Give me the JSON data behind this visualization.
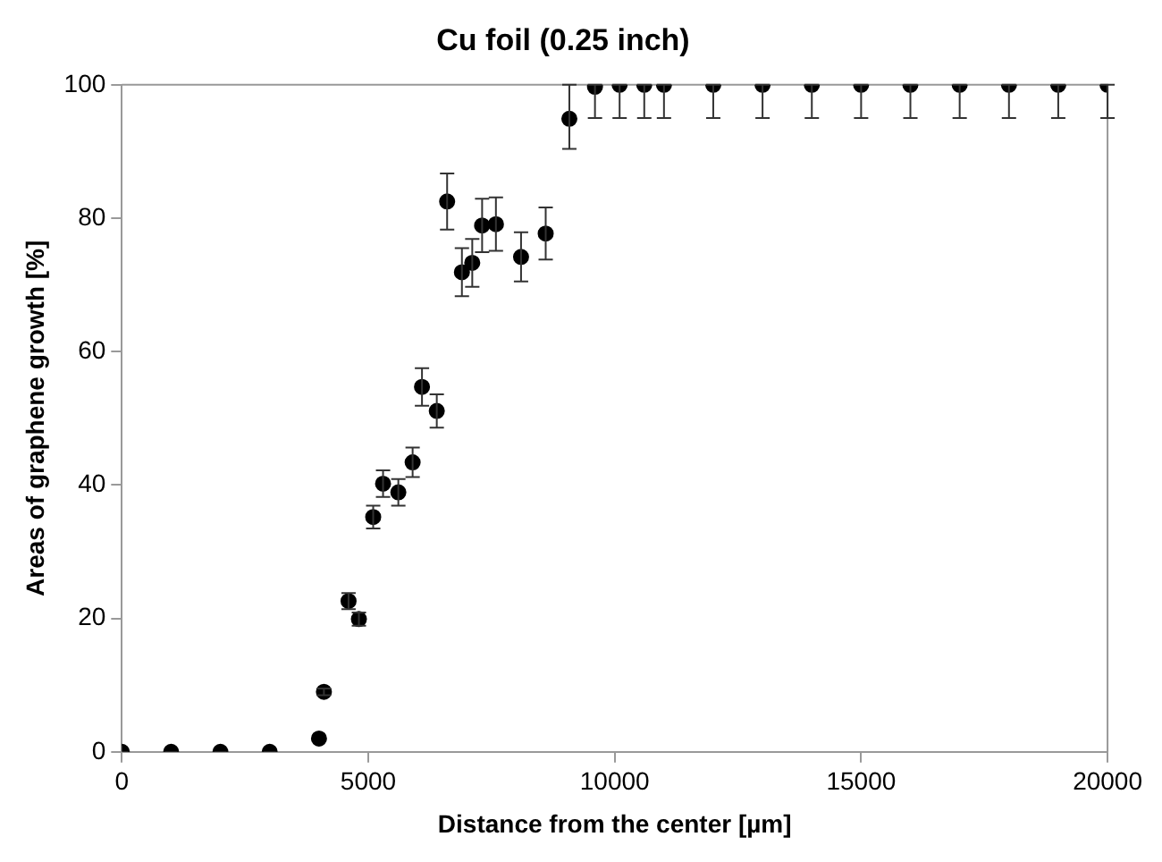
{
  "chart_data": {
    "type": "scatter",
    "title": "Cu foil (0.25 inch)",
    "xlabel": "Distance from the center [µm]",
    "ylabel": "Areas of graphene growth [%]",
    "x": [
      0,
      1000,
      2000,
      3000,
      4000,
      4100,
      4600,
      4810,
      5100,
      5300,
      5610,
      5900,
      6090,
      6390,
      6600,
      6900,
      7110,
      7310,
      7590,
      8100,
      8600,
      9080,
      9600,
      10100,
      10600,
      11000,
      12000,
      13000,
      14000,
      15000,
      16000,
      17000,
      18000,
      19000,
      20000
    ],
    "values": [
      0,
      0,
      0,
      0,
      2,
      9,
      22.6,
      19.9,
      35.2,
      40.2,
      38.9,
      43.4,
      54.7,
      51.1,
      82.5,
      71.9,
      73.3,
      78.9,
      79.1,
      74.2,
      77.7,
      94.9,
      99.7,
      100,
      100,
      100,
      100,
      100,
      100,
      100,
      100,
      100,
      100,
      100,
      100
    ],
    "errors": [
      null,
      null,
      null,
      null,
      null,
      0.5,
      1.2,
      1,
      1.7,
      2,
      2,
      2.2,
      2.8,
      2.5,
      4.2,
      3.6,
      3.6,
      4,
      4,
      3.7,
      3.9,
      [
        90.4,
        100
      ],
      [
        95,
        100
      ],
      [
        95,
        100
      ],
      [
        95,
        100
      ],
      [
        95,
        100
      ],
      [
        95,
        100
      ],
      [
        95,
        100
      ],
      [
        95,
        100
      ],
      [
        95,
        100
      ],
      [
        95,
        100
      ],
      [
        95,
        100
      ],
      [
        95,
        100
      ],
      [
        95,
        100
      ],
      [
        95,
        100
      ]
    ],
    "color": "#000000",
    "marker": "circle",
    "grid": false,
    "legend": false,
    "xlim": [
      0,
      20000
    ],
    "xticks": [
      0,
      5000,
      10000,
      15000,
      20000
    ],
    "ylim": [
      0,
      100
    ],
    "yticks": [
      0,
      20,
      40,
      60,
      80,
      100
    ]
  }
}
